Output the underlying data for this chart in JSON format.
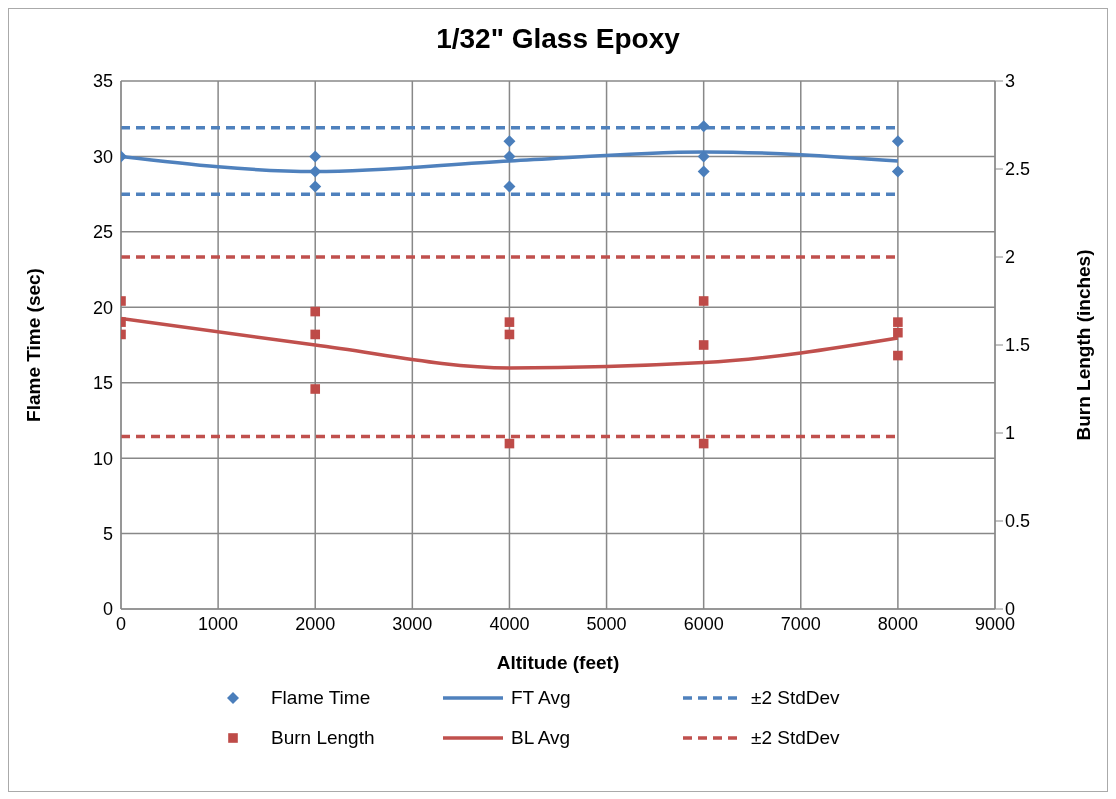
{
  "chart_data": {
    "type": "scatter",
    "title": "1/32\" Glass Epoxy",
    "xlabel": "Altitude (feet)",
    "ylabel": "Flame Time (sec)",
    "y2label": "Burn Length (inches)",
    "xlim": [
      0,
      9000
    ],
    "xticks": [
      0,
      1000,
      2000,
      3000,
      4000,
      5000,
      6000,
      7000,
      8000,
      9000
    ],
    "ylim": [
      0,
      35
    ],
    "yticks": [
      0,
      5,
      10,
      15,
      20,
      25,
      30,
      35
    ],
    "y2lim": [
      0,
      3
    ],
    "y2ticks": [
      0,
      0.5,
      1,
      1.5,
      2,
      2.5,
      3
    ],
    "grid": true,
    "legend": "bottom",
    "series": [
      {
        "name": "Flame Time",
        "marker": "diamond",
        "color": "#4a7ebb",
        "x": [
          0,
          2000,
          2000,
          2000,
          4000,
          4000,
          4000,
          6000,
          6000,
          6000,
          8000,
          8000
        ],
        "values": [
          30,
          30,
          29,
          28,
          31,
          30,
          28,
          32,
          30,
          29,
          31,
          29
        ]
      },
      {
        "name": "FT Avg",
        "type": "line",
        "marker": "none",
        "line_style": "solid",
        "color": "#4f81bd",
        "x": [
          0,
          2000,
          4000,
          6000,
          8000
        ],
        "values": [
          30,
          29,
          29.7,
          30.3,
          29.7
        ]
      },
      {
        "name": "±2 StdDev",
        "type": "line",
        "marker": "none",
        "line_style": "dashed",
        "color": "#4f81bd",
        "x": [
          0,
          8000
        ],
        "values": [
          31.9,
          31.9
        ]
      },
      {
        "name": "Burn Length",
        "marker": "square",
        "axis": "y2",
        "color": "#be4b48",
        "x": [
          0,
          0,
          0,
          2000,
          2000,
          2000,
          4000,
          4000,
          4000,
          6000,
          6000,
          6000,
          8000,
          8000,
          8000
        ],
        "values": [
          1.75,
          1.63,
          1.56,
          1.69,
          1.56,
          1.25,
          1.63,
          1.56,
          0.94,
          1.75,
          1.5,
          0.94,
          1.63,
          1.57,
          1.44
        ]
      },
      {
        "name": "BL Avg",
        "type": "line",
        "marker": "none",
        "line_style": "solid",
        "axis": "y2",
        "color": "#c0504d",
        "x": [
          0,
          2000,
          4000,
          6000,
          8000
        ],
        "values": [
          1.65,
          1.5,
          1.37,
          1.4,
          1.54
        ]
      },
      {
        "name": "±2 StdDev",
        "type": "line",
        "marker": "none",
        "line_style": "dashed",
        "axis": "y2",
        "color": "#c0504d",
        "x": [
          0,
          8000
        ],
        "values": [
          2,
          2
        ]
      },
      {
        "type": "line",
        "marker": "none",
        "line_style": "dashed",
        "color": "#4f81bd",
        "x": [
          0,
          8000
        ],
        "values": [
          27.5,
          27.5
        ]
      },
      {
        "type": "line",
        "marker": "none",
        "line_style": "dashed",
        "axis": "y2",
        "color": "#c0504d",
        "x": [
          0,
          8000
        ],
        "values": [
          0.98,
          0.98
        ]
      }
    ]
  }
}
